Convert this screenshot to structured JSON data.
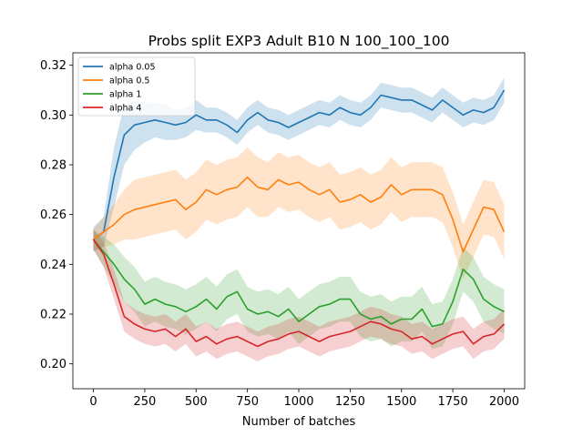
{
  "chart_data": {
    "type": "line",
    "title": "Probs split EXP3 Adult B10 N 100_100_100",
    "xlabel": "Number of batches",
    "ylabel": "",
    "xlim": [
      -100,
      2100
    ],
    "ylim": [
      0.19,
      0.325
    ],
    "x_ticks": [
      0,
      250,
      500,
      750,
      1000,
      1250,
      1500,
      1750,
      2000
    ],
    "y_ticks": [
      0.2,
      0.22,
      0.24,
      0.26,
      0.28,
      0.3,
      0.32
    ],
    "legend_position": "top-left",
    "grid": false,
    "x": [
      0,
      50,
      100,
      150,
      200,
      250,
      300,
      350,
      400,
      450,
      500,
      550,
      600,
      650,
      700,
      750,
      800,
      850,
      900,
      950,
      1000,
      1050,
      1100,
      1150,
      1200,
      1250,
      1300,
      1350,
      1400,
      1450,
      1500,
      1550,
      1600,
      1650,
      1700,
      1750,
      1800,
      1850,
      1900,
      1950,
      2000
    ],
    "series": [
      {
        "name": "alpha 0.05",
        "color": "#1f77b4",
        "values": [
          0.25,
          0.253,
          0.275,
          0.292,
          0.296,
          0.297,
          0.298,
          0.297,
          0.296,
          0.297,
          0.3,
          0.298,
          0.298,
          0.296,
          0.293,
          0.298,
          0.301,
          0.298,
          0.297,
          0.295,
          0.297,
          0.299,
          0.301,
          0.3,
          0.303,
          0.301,
          0.3,
          0.303,
          0.308,
          0.307,
          0.306,
          0.306,
          0.304,
          0.302,
          0.306,
          0.303,
          0.3,
          0.302,
          0.301,
          0.303,
          0.31
        ],
        "band": [
          0.005,
          0.006,
          0.012,
          0.012,
          0.01,
          0.008,
          0.007,
          0.007,
          0.006,
          0.006,
          0.006,
          0.005,
          0.005,
          0.005,
          0.005,
          0.005,
          0.005,
          0.005,
          0.005,
          0.005,
          0.005,
          0.005,
          0.005,
          0.005,
          0.005,
          0.005,
          0.005,
          0.005,
          0.005,
          0.005,
          0.005,
          0.005,
          0.005,
          0.005,
          0.005,
          0.005,
          0.005,
          0.005,
          0.005,
          0.005,
          0.005
        ]
      },
      {
        "name": "alpha 0.5",
        "color": "#ff7f0e",
        "values": [
          0.25,
          0.253,
          0.256,
          0.26,
          0.262,
          0.263,
          0.264,
          0.265,
          0.266,
          0.262,
          0.265,
          0.27,
          0.268,
          0.27,
          0.271,
          0.275,
          0.271,
          0.27,
          0.274,
          0.272,
          0.273,
          0.27,
          0.268,
          0.27,
          0.265,
          0.266,
          0.268,
          0.265,
          0.267,
          0.272,
          0.268,
          0.27,
          0.27,
          0.27,
          0.268,
          0.258,
          0.245,
          0.254,
          0.263,
          0.262,
          0.253
        ],
        "band": [
          0.004,
          0.006,
          0.008,
          0.01,
          0.012,
          0.012,
          0.012,
          0.012,
          0.012,
          0.012,
          0.012,
          0.012,
          0.012,
          0.012,
          0.012,
          0.012,
          0.012,
          0.011,
          0.011,
          0.011,
          0.011,
          0.011,
          0.011,
          0.011,
          0.011,
          0.011,
          0.011,
          0.011,
          0.011,
          0.011,
          0.011,
          0.011,
          0.011,
          0.011,
          0.011,
          0.011,
          0.011,
          0.011,
          0.011,
          0.011,
          0.011
        ]
      },
      {
        "name": "alpha 1",
        "color": "#2ca02c",
        "values": [
          0.25,
          0.245,
          0.24,
          0.234,
          0.23,
          0.224,
          0.226,
          0.224,
          0.223,
          0.221,
          0.223,
          0.226,
          0.222,
          0.227,
          0.229,
          0.222,
          0.22,
          0.221,
          0.219,
          0.222,
          0.217,
          0.22,
          0.223,
          0.224,
          0.226,
          0.226,
          0.22,
          0.218,
          0.219,
          0.216,
          0.218,
          0.218,
          0.222,
          0.215,
          0.216,
          0.225,
          0.238,
          0.234,
          0.226,
          0.223,
          0.221
        ],
        "band": [
          0.004,
          0.006,
          0.008,
          0.009,
          0.009,
          0.009,
          0.009,
          0.009,
          0.009,
          0.009,
          0.009,
          0.009,
          0.009,
          0.009,
          0.009,
          0.009,
          0.009,
          0.009,
          0.009,
          0.009,
          0.009,
          0.009,
          0.009,
          0.009,
          0.009,
          0.009,
          0.009,
          0.009,
          0.009,
          0.009,
          0.009,
          0.009,
          0.009,
          0.009,
          0.009,
          0.009,
          0.009,
          0.009,
          0.009,
          0.009,
          0.009
        ]
      },
      {
        "name": "alpha 4",
        "color": "#d62728",
        "values": [
          0.25,
          0.244,
          0.232,
          0.219,
          0.216,
          0.214,
          0.213,
          0.214,
          0.211,
          0.214,
          0.209,
          0.211,
          0.208,
          0.21,
          0.211,
          0.209,
          0.207,
          0.209,
          0.21,
          0.212,
          0.213,
          0.211,
          0.209,
          0.211,
          0.212,
          0.213,
          0.215,
          0.217,
          0.216,
          0.214,
          0.213,
          0.21,
          0.211,
          0.208,
          0.21,
          0.212,
          0.213,
          0.208,
          0.211,
          0.212,
          0.216
        ],
        "band": [
          0.004,
          0.005,
          0.006,
          0.006,
          0.006,
          0.006,
          0.006,
          0.006,
          0.006,
          0.006,
          0.006,
          0.006,
          0.006,
          0.006,
          0.006,
          0.006,
          0.006,
          0.006,
          0.006,
          0.006,
          0.006,
          0.006,
          0.006,
          0.006,
          0.006,
          0.006,
          0.006,
          0.006,
          0.006,
          0.006,
          0.006,
          0.006,
          0.006,
          0.006,
          0.006,
          0.006,
          0.006,
          0.006,
          0.006,
          0.006,
          0.006
        ]
      }
    ]
  }
}
